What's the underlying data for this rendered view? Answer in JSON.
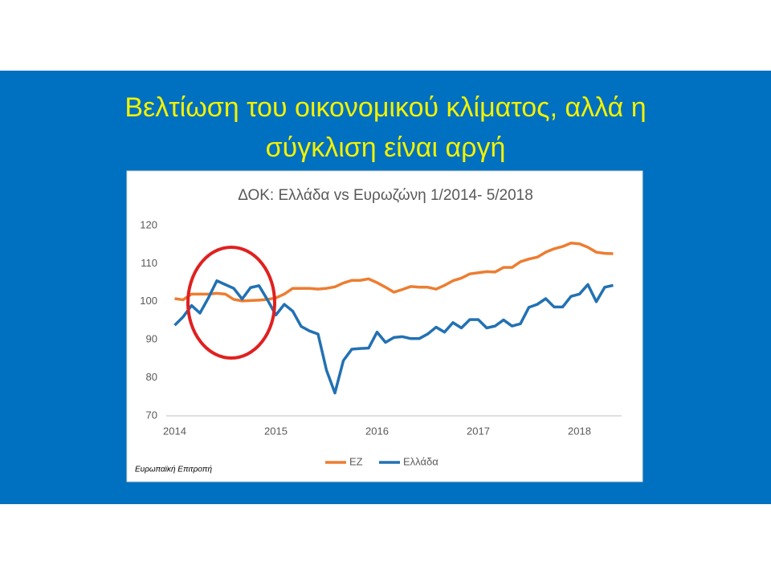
{
  "slide": {
    "title_lines": [
      "Βελτίωση του οικονομικού κλίματος, αλλά η",
      "σύγκλιση είναι αργή"
    ],
    "source": "Ευρωπαϊκή Επιτροπή"
  },
  "chart_data": {
    "type": "line",
    "title": "ΔΟΚ: Ελλάδα vs Ευρωζώνη 1/2014- 5/2018",
    "x": [
      0,
      1,
      2,
      3,
      4,
      5,
      6,
      7,
      8,
      9,
      10,
      11,
      12,
      13,
      14,
      15,
      16,
      17,
      18,
      19,
      20,
      21,
      22,
      23,
      24,
      25,
      26,
      27,
      28,
      29,
      30,
      31,
      32,
      33,
      34,
      35,
      36,
      37,
      38,
      39,
      40,
      41,
      42,
      43,
      44,
      45,
      46,
      47,
      48,
      49,
      50,
      51,
      52
    ],
    "xlim": [
      -1,
      53
    ],
    "xticks": [
      {
        "value": 0,
        "label": "2014"
      },
      {
        "value": 12,
        "label": "2015"
      },
      {
        "value": 24,
        "label": "2016"
      },
      {
        "value": 36,
        "label": "2017"
      },
      {
        "value": 48,
        "label": "2018"
      }
    ],
    "ylim": [
      70,
      120
    ],
    "yticks": [
      70,
      80,
      90,
      100,
      110,
      120
    ],
    "legend": "bottom",
    "series": [
      {
        "name": "EZ",
        "color": "#ed7d31",
        "values": [
          100.8,
          100.5,
          102,
          102,
          102,
          102.2,
          102,
          100.6,
          100.2,
          100.3,
          100.4,
          100.6,
          101,
          102,
          103.5,
          103.5,
          103.5,
          103.3,
          103.5,
          103.9,
          104.9,
          105.6,
          105.6,
          106,
          105,
          103.8,
          102.5,
          103.2,
          104,
          103.8,
          103.8,
          103.3,
          104.3,
          105.5,
          106.2,
          107.3,
          107.6,
          107.9,
          107.8,
          109,
          109,
          110.5,
          111.2,
          111.7,
          113,
          113.9,
          114.5,
          115.4,
          115.2,
          114.3,
          113,
          112.7,
          112.6
        ]
      },
      {
        "name": "Ελλάδα",
        "color": "#2271b3",
        "values": [
          93.8,
          96,
          99,
          97,
          101,
          105.5,
          104.5,
          103.5,
          100.7,
          103.7,
          104.2,
          100.5,
          96.5,
          99.3,
          97.5,
          93.5,
          92.3,
          91.5,
          82,
          76,
          84.5,
          87.5,
          87.7,
          87.8,
          92,
          89.3,
          90.6,
          90.8,
          90.3,
          90.3,
          91.5,
          93.3,
          92,
          94.5,
          93.1,
          95.3,
          95.3,
          93.1,
          93.6,
          95.2,
          93.6,
          94.2,
          98.5,
          99.3,
          100.8,
          98.6,
          98.6,
          101.4,
          102,
          104.5,
          100,
          103.8,
          104.3
        ]
      }
    ]
  }
}
